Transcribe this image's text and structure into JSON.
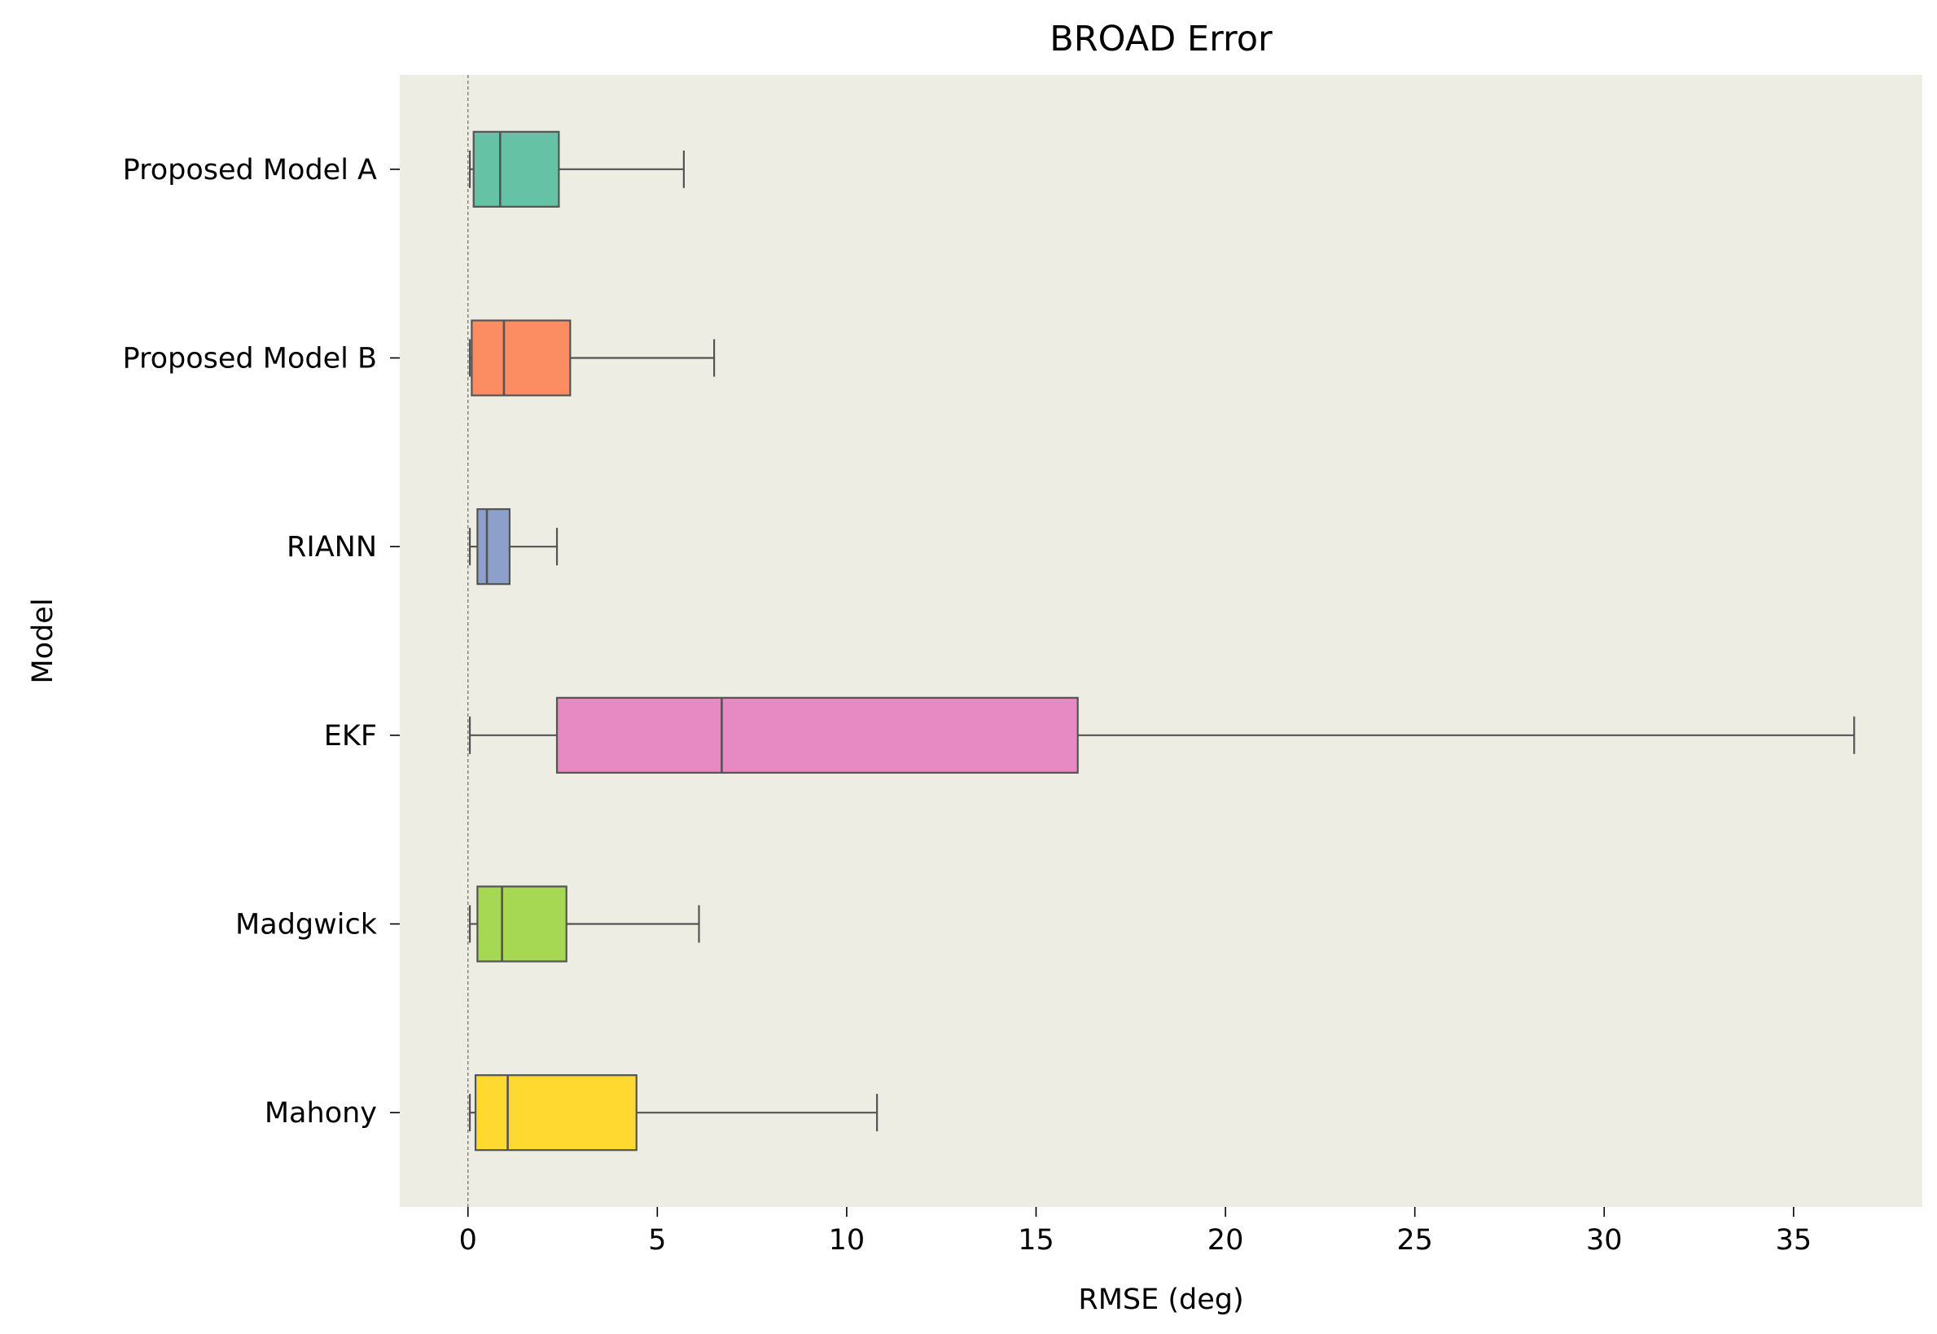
{
  "chart_data": {
    "type": "boxplot",
    "orientation": "horizontal",
    "title": "BROAD Error",
    "xlabel": "RMSE (deg)",
    "ylabel": "Model",
    "xlim": [
      -1.8,
      38.4
    ],
    "x_ticks": [
      0,
      5,
      10,
      15,
      20,
      25,
      30,
      35
    ],
    "x_tick_labels": [
      "0",
      "5",
      "10",
      "15",
      "20",
      "25",
      "30",
      "35"
    ],
    "reference_line": {
      "x": 0,
      "style": "dashed"
    },
    "grid": false,
    "background": "#eeede4",
    "categories": [
      "Proposed Model A",
      "Proposed Model B",
      "RIANN",
      "EKF",
      "Madgwick",
      "Mahony"
    ],
    "series": [
      {
        "category": "Proposed Model A",
        "whisker_low": 0.05,
        "q1": 0.15,
        "median": 0.85,
        "q3": 2.4,
        "whisker_high": 5.7,
        "color": "#66c2a5"
      },
      {
        "category": "Proposed Model B",
        "whisker_low": 0.05,
        "q1": 0.1,
        "median": 0.95,
        "q3": 2.7,
        "whisker_high": 6.5,
        "color": "#fc8d62"
      },
      {
        "category": "RIANN",
        "whisker_low": 0.05,
        "q1": 0.25,
        "median": 0.5,
        "q3": 1.1,
        "whisker_high": 2.35,
        "color": "#8da0cb"
      },
      {
        "category": "EKF",
        "whisker_low": 0.05,
        "q1": 2.35,
        "median": 6.7,
        "q3": 16.1,
        "whisker_high": 36.6,
        "color": "#e78ac3"
      },
      {
        "category": "Madgwick",
        "whisker_low": 0.05,
        "q1": 0.25,
        "median": 0.9,
        "q3": 2.6,
        "whisker_high": 6.1,
        "color": "#a6d854"
      },
      {
        "category": "Mahony",
        "whisker_low": 0.05,
        "q1": 0.2,
        "median": 1.05,
        "q3": 4.45,
        "whisker_high": 10.8,
        "color": "#ffd92f"
      }
    ],
    "box_edge_color": "#545454"
  }
}
